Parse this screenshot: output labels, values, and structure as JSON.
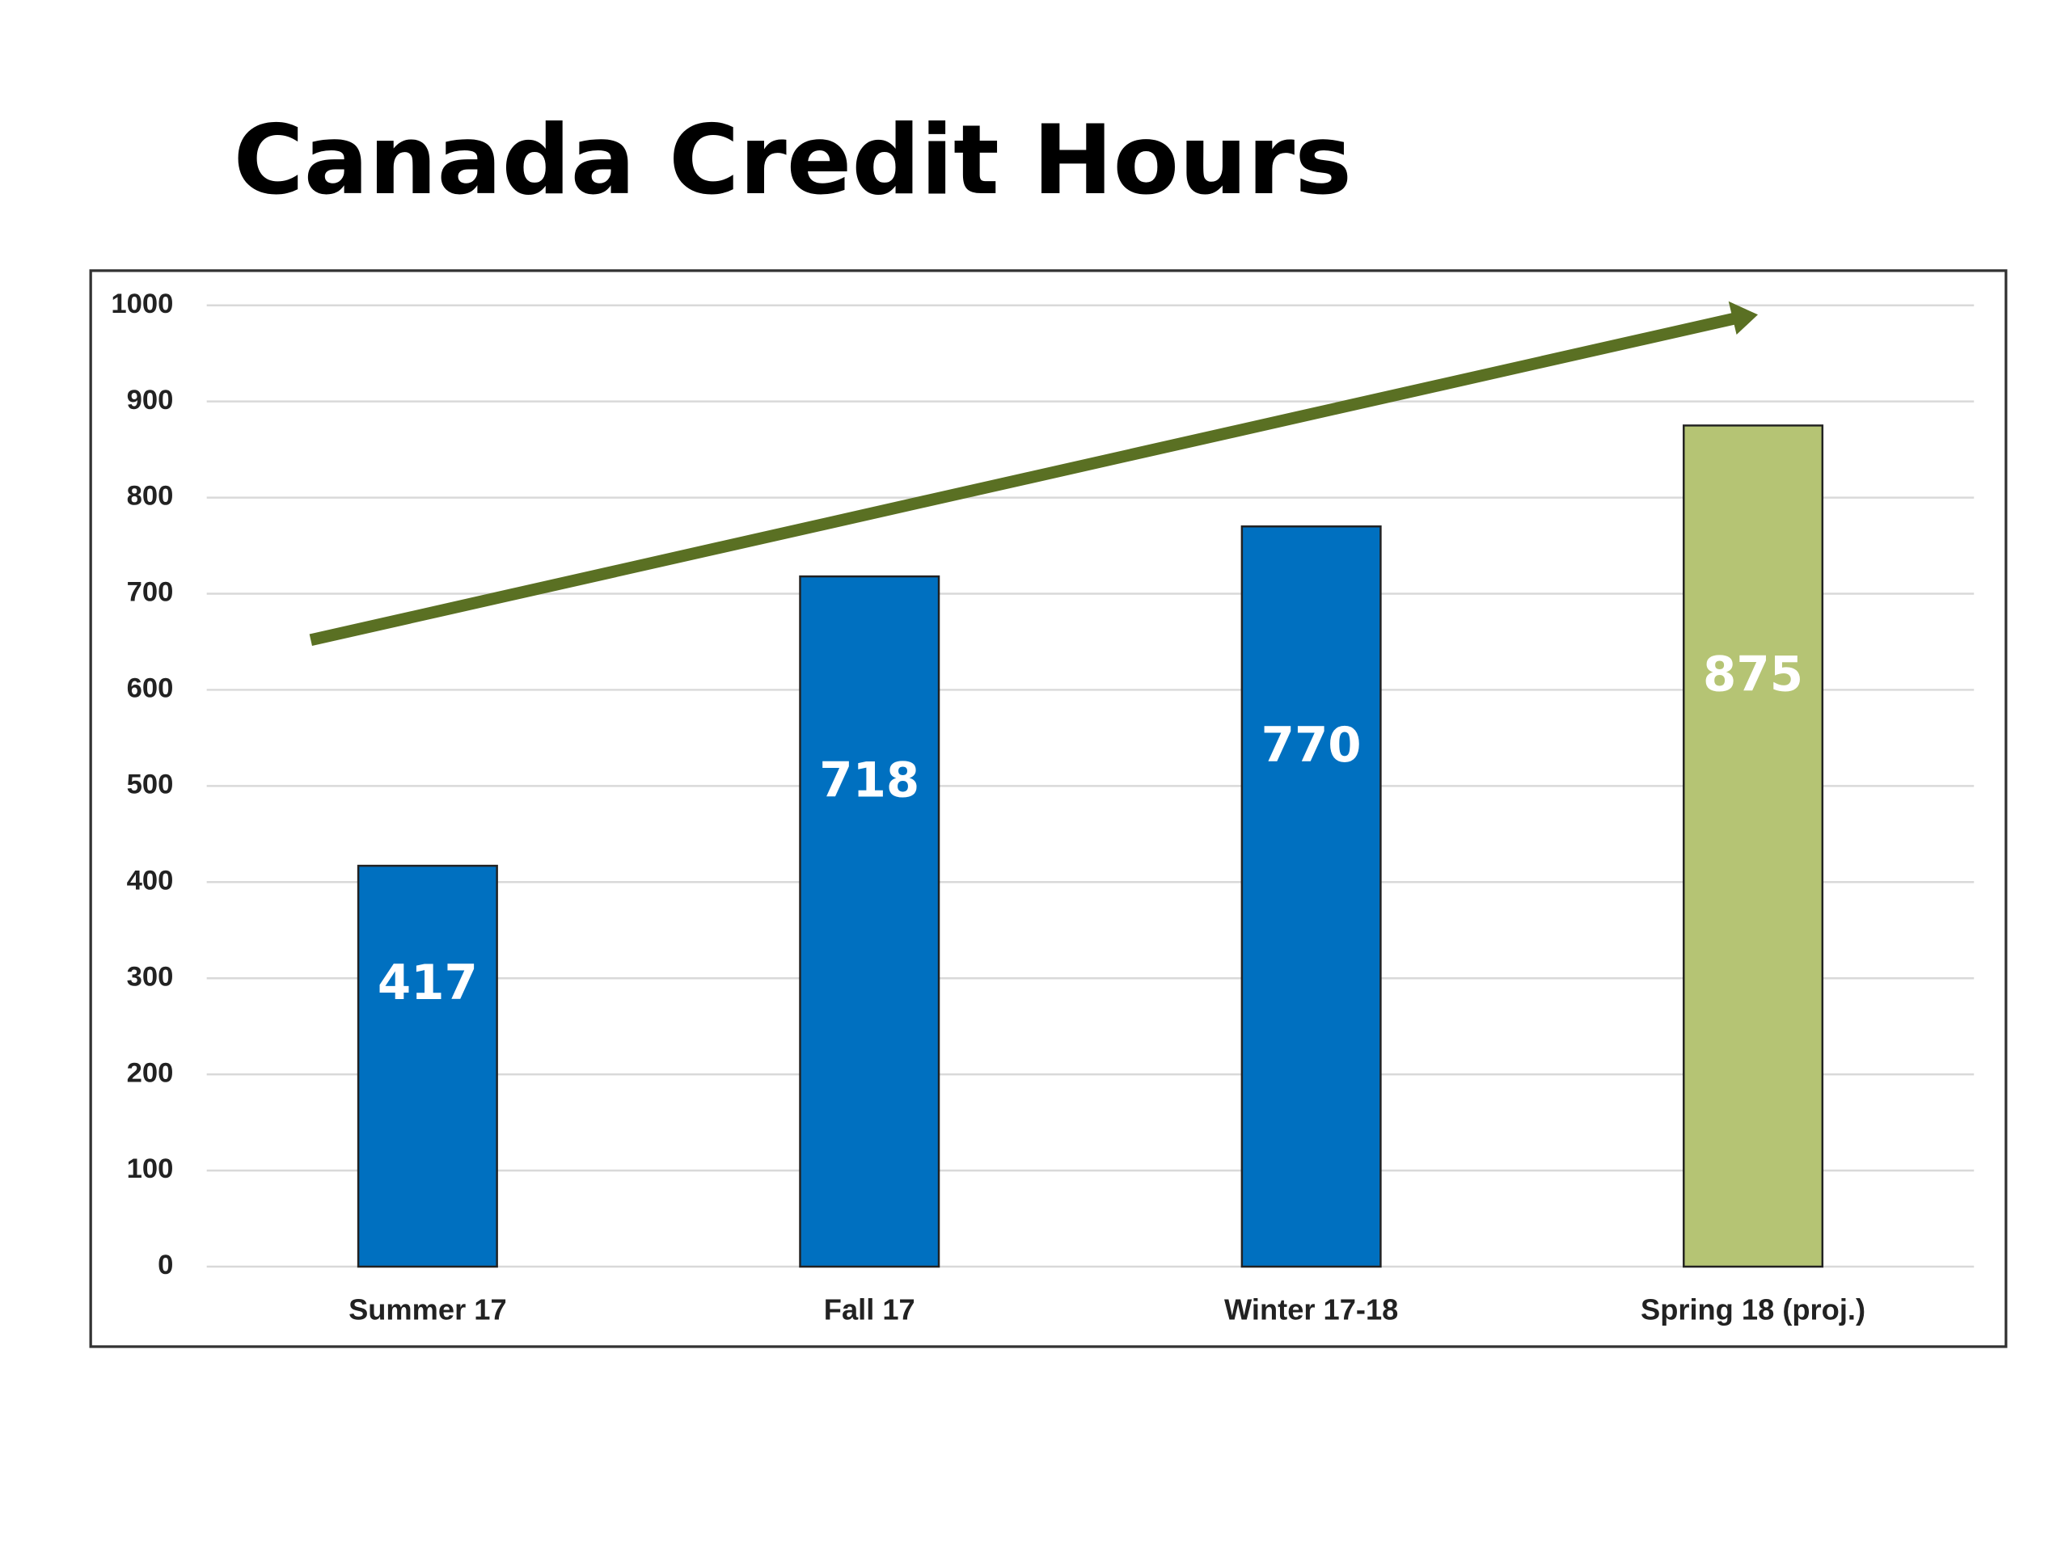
{
  "chart_data": {
    "type": "bar",
    "title": "Canada Credit Hours",
    "categories": [
      "Summer 17",
      "Fall 17",
      "Winter 17-18",
      "Spring 18 (proj.)"
    ],
    "values": [
      417,
      718,
      770,
      875
    ],
    "colors": [
      "#0070c0",
      "#0070c0",
      "#0070c0",
      "#b5c474"
    ],
    "ylim": [
      0,
      1000
    ],
    "yticks": [
      0,
      100,
      200,
      300,
      400,
      500,
      600,
      700,
      800,
      900,
      1000
    ],
    "grid": true
  }
}
